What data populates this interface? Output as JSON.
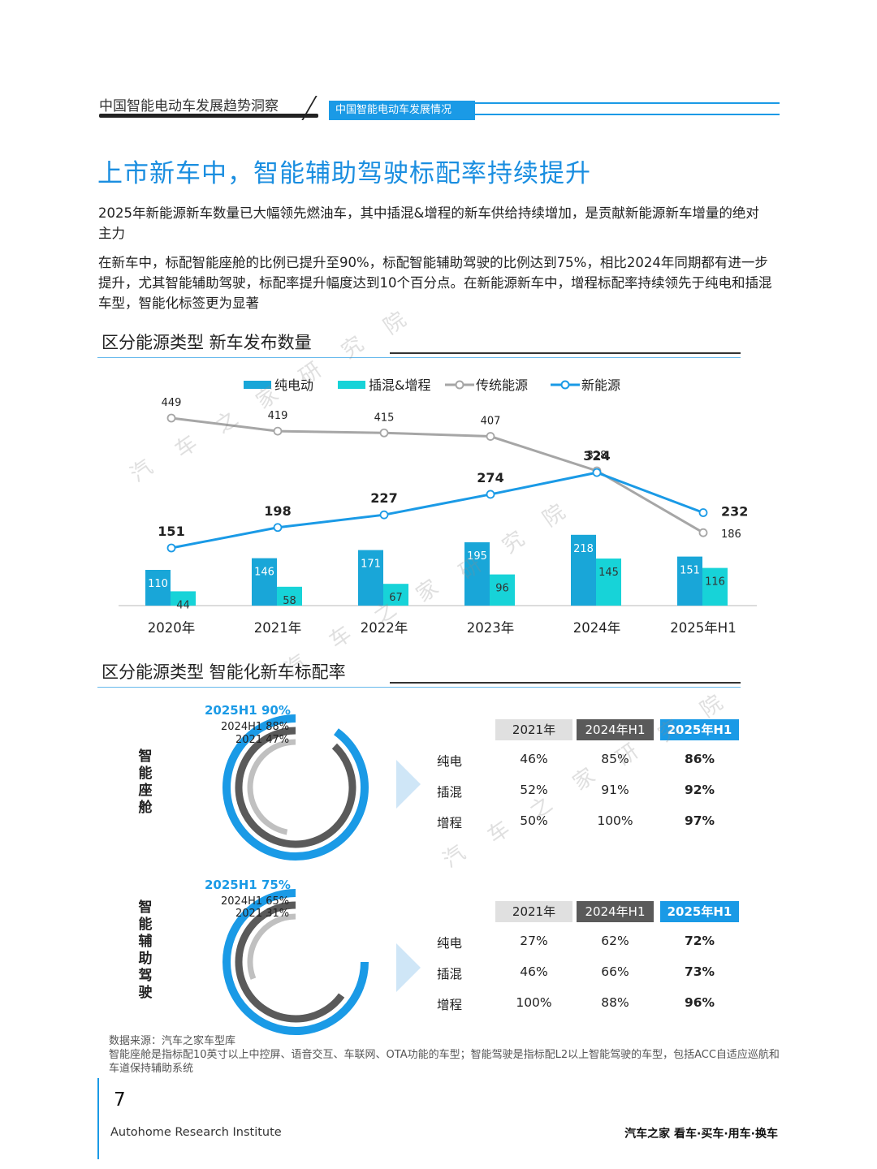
{
  "header": {
    "left_title": "中国智能电动车发展趋势洞察",
    "tab": "中国智能电动车发展情况"
  },
  "title": "上市新车中，智能辅助驾驶标配率持续提升",
  "paragraphs": [
    "2025年新能源新车数量已大幅领先燃油车，其中插混&增程的新车供给持续增加，是贡献新能源新车增量的绝对主力",
    "在新车中，标配智能座舱的比例已提升至90%，标配智能辅助驾驶的比例达到75%，相比2024年同期都有进一步提升，尤其智能辅助驾驶，标配率提升幅度达到10个百分点。在新能源新车中，增程标配率持续领先于纯电和插混车型，智能化标签更为显著"
  ],
  "section1_title": "区分能源类型 新车发布数量",
  "section2_title": "区分能源类型 智能化新车标配率",
  "chart_data": [
    {
      "type": "bar",
      "title": "",
      "categories": [
        "2020年",
        "2021年",
        "2022年",
        "2023年",
        "2024年",
        "2025年H1"
      ],
      "series": [
        {
          "name": "纯电动",
          "kind": "bar",
          "color": "#19a6d8",
          "values": [
            110,
            146,
            171,
            195,
            218,
            151
          ]
        },
        {
          "name": "插混&增程",
          "kind": "bar",
          "color": "#17d3d8",
          "values": [
            44,
            58,
            67,
            96,
            145,
            116
          ]
        },
        {
          "name": "传统能源",
          "kind": "line",
          "color": "#a6a6a6",
          "values": [
            449,
            419,
            415,
            407,
            328,
            186
          ]
        },
        {
          "name": "新能源",
          "kind": "line",
          "color": "#1a9ae6",
          "values": [
            151,
            198,
            227,
            274,
            324,
            232
          ]
        }
      ],
      "legend": "top"
    },
    {
      "type": "pie",
      "title": "智能座舱",
      "rings": [
        {
          "label": "2025H1 90%",
          "value": 90,
          "color": "#1a9ae6"
        },
        {
          "label": "2024H1 88%",
          "value": 88,
          "color": "#5a5a5a"
        },
        {
          "label": "2021 47%",
          "value": 47,
          "color": "#c0c0c0"
        }
      ]
    },
    {
      "type": "pie",
      "title": "智能辅助驾驶",
      "rings": [
        {
          "label": "2025H1 75%",
          "value": 75,
          "color": "#1a9ae6"
        },
        {
          "label": "2024H1 65%",
          "value": 65,
          "color": "#5a5a5a"
        },
        {
          "label": "2021 31%",
          "value": 31,
          "color": "#c0c0c0"
        }
      ]
    }
  ],
  "cabin_label": [
    "智",
    "能",
    "座",
    "舱"
  ],
  "adas_label": [
    "智",
    "能",
    "辅",
    "助",
    "驾",
    "驶"
  ],
  "tables": [
    {
      "headers": [
        "2021年",
        "2024年H1",
        "2025年H1"
      ],
      "rows": [
        [
          "纯电",
          "46%",
          "85%",
          "86%"
        ],
        [
          "插混",
          "52%",
          "91%",
          "92%"
        ],
        [
          "增程",
          "50%",
          "100%",
          "97%"
        ]
      ]
    },
    {
      "headers": [
        "2021年",
        "2024年H1",
        "2025年H1"
      ],
      "rows": [
        [
          "纯电",
          "27%",
          "62%",
          "72%"
        ],
        [
          "插混",
          "46%",
          "66%",
          "73%"
        ],
        [
          "增程",
          "100%",
          "88%",
          "96%"
        ]
      ]
    }
  ],
  "footnotes": [
    "数据来源：汽车之家车型库",
    "智能座舱是指标配10英寸以上中控屏、语音交互、车联网、OTA功能的车型；智能驾驶是指标配L2以上智能驾驶的车型，包括ACC自适应巡航和车道保持辅助系统"
  ],
  "page_number": "7",
  "footer_left": "Autohome Research Institute",
  "footer_right": "汽车之家 看车·买车·用车·换车",
  "watermark": [
    "汽",
    "车",
    "之",
    "家",
    "研",
    "究",
    "院"
  ]
}
